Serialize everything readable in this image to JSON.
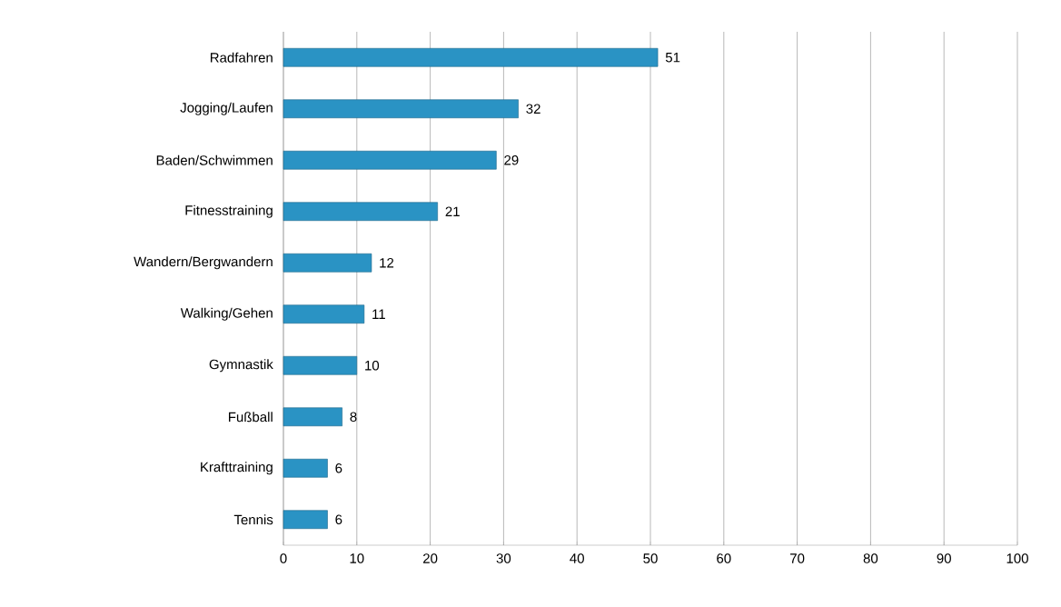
{
  "chart_data": {
    "type": "bar",
    "orientation": "horizontal",
    "categories": [
      "Radfahren",
      "Jogging/Laufen",
      "Baden/Schwimmen",
      "Fitnesstraining",
      "Wandern/Bergwandern",
      "Walking/Gehen",
      "Gymnastik",
      "Fußball",
      "Krafttraining",
      "Tennis"
    ],
    "values": [
      51,
      32,
      29,
      21,
      12,
      11,
      10,
      8,
      6,
      6
    ],
    "color": "#2a93c4",
    "xlim": [
      0,
      100
    ],
    "xticks": [
      0,
      10,
      20,
      30,
      40,
      50,
      60,
      70,
      80,
      90,
      100
    ],
    "grid": "x",
    "data_labels": true
  }
}
